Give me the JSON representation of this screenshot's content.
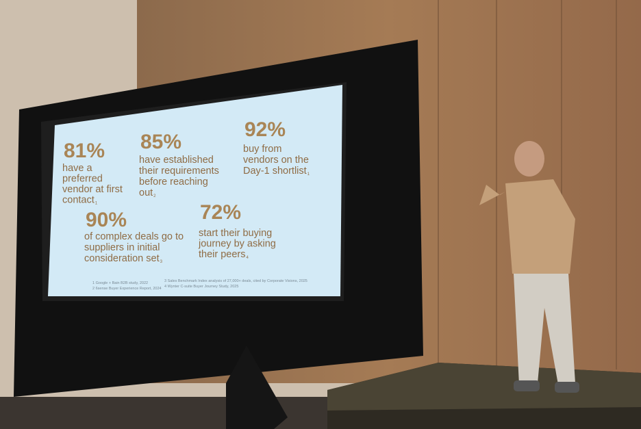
{
  "slide": {
    "stats": [
      {
        "value": "81%",
        "lines": [
          "have a",
          "preferred",
          "vendor at first",
          "contact"
        ],
        "note": "1"
      },
      {
        "value": "85%",
        "lines": [
          "have established",
          "their requirements",
          "before reaching",
          "out"
        ],
        "note": "2"
      },
      {
        "value": "92%",
        "lines": [
          "buy from",
          "vendors on the",
          "Day-1 shortlist"
        ],
        "note": "1"
      },
      {
        "value": "90%",
        "lines": [
          "of complex deals go to",
          "suppliers in initial",
          "consideration set"
        ],
        "note": "3"
      },
      {
        "value": "72%",
        "lines": [
          "start their buying",
          "journey by asking",
          "their peers"
        ],
        "note": "4"
      }
    ],
    "footnotes": [
      "1 Google + Bain B2B study, 2022",
      "2 6sense Buyer Experience Report, 2024",
      "3 Sales Benchmark Index analysis of 27,000+ deals, cited by Corporate Visions, 2025",
      "4 Wynter C-suite Buyer Journey Study, 2025"
    ]
  }
}
